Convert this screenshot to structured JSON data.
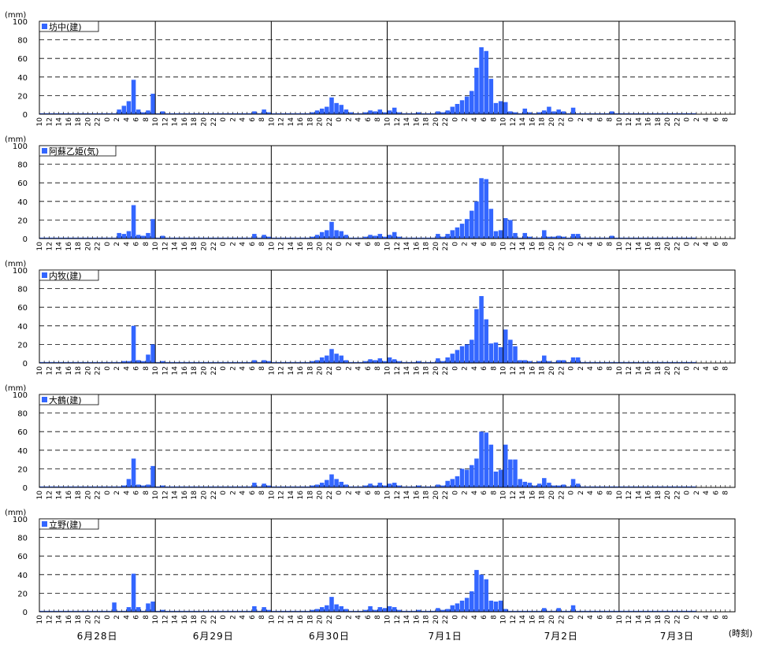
{
  "unit_label": "(mm)",
  "time_axis_label": "(時刻)",
  "y_ticks": [
    "0",
    "20",
    "40",
    "60",
    "80",
    "100"
  ],
  "x_tick_labels": [
    "10",
    "12",
    "14",
    "16",
    "18",
    "20",
    "22",
    "0",
    "2",
    "4",
    "6",
    "8"
  ],
  "day_labels": [
    "6月28日",
    "6月29日",
    "6月30日",
    "7月1日",
    "7月2日",
    "7月3日"
  ],
  "colors": {
    "bar": "#3366FF",
    "grid": "#000000",
    "text": "#000000"
  },
  "chart_data": [
    {
      "type": "bar",
      "name": "坊中(建)",
      "ylim": [
        0,
        100
      ],
      "grid": true,
      "legend": "top-left",
      "start": "6/28 10時",
      "interval_hours": 1,
      "values": [
        1,
        1,
        1,
        1,
        1,
        1,
        1,
        1,
        1,
        1,
        1,
        1,
        1,
        1,
        1,
        1,
        5,
        9,
        14,
        37,
        5,
        2,
        4,
        22,
        1,
        3,
        1,
        1,
        1,
        1,
        1,
        1,
        1,
        1,
        1,
        1,
        1,
        1,
        1,
        1,
        1,
        1,
        1,
        1,
        3,
        1,
        5,
        2,
        1,
        1,
        1,
        1,
        1,
        1,
        1,
        1,
        2,
        4,
        6,
        8,
        18,
        12,
        10,
        5,
        2,
        1,
        1,
        2,
        4,
        3,
        5,
        2,
        4,
        7,
        2,
        1,
        1,
        1,
        2,
        1,
        1,
        1,
        3,
        2,
        4,
        8,
        11,
        15,
        19,
        25,
        50,
        72,
        68,
        38,
        12,
        14,
        13,
        3,
        2,
        1,
        6,
        2,
        1,
        2,
        4,
        8,
        3,
        5,
        3,
        1,
        7,
        1,
        1,
        1,
        1,
        1,
        1,
        1,
        3,
        1,
        1,
        1,
        1,
        1,
        1,
        1,
        1,
        1,
        1,
        1,
        1,
        1,
        1,
        1,
        1,
        1
      ]
    },
    {
      "type": "bar",
      "name": "阿蘇乙姫(気)",
      "ylim": [
        0,
        100
      ],
      "grid": true,
      "legend": "top-left",
      "start": "6/28 10時",
      "interval_hours": 1,
      "values": [
        1,
        1,
        1,
        1,
        1,
        1,
        1,
        1,
        1,
        1,
        1,
        1,
        1,
        1,
        1,
        1,
        6,
        5,
        8,
        36,
        4,
        3,
        6,
        21,
        1,
        3,
        1,
        1,
        1,
        1,
        1,
        1,
        1,
        1,
        1,
        1,
        1,
        1,
        1,
        1,
        1,
        1,
        1,
        1,
        5,
        1,
        4,
        2,
        1,
        1,
        1,
        1,
        1,
        1,
        1,
        1,
        2,
        4,
        7,
        9,
        18,
        9,
        8,
        4,
        1,
        1,
        1,
        2,
        4,
        3,
        5,
        2,
        4,
        7,
        2,
        1,
        1,
        1,
        1,
        1,
        1,
        1,
        5,
        2,
        5,
        9,
        12,
        16,
        21,
        30,
        40,
        65,
        64,
        32,
        8,
        9,
        22,
        20,
        6,
        1,
        6,
        2,
        1,
        1,
        9,
        2,
        2,
        3,
        2,
        1,
        5,
        5,
        1,
        1,
        1,
        1,
        1,
        1,
        3,
        1,
        1,
        1,
        1,
        1,
        1,
        1,
        1,
        1,
        1,
        1,
        1,
        1,
        1,
        1,
        1,
        1
      ]
    },
    {
      "type": "bar",
      "name": "内牧(建)",
      "ylim": [
        0,
        100
      ],
      "grid": true,
      "legend": "top-left",
      "start": "6/28 10時",
      "interval_hours": 1,
      "values": [
        1,
        1,
        1,
        1,
        1,
        1,
        1,
        1,
        1,
        1,
        1,
        1,
        1,
        1,
        1,
        1,
        1,
        2,
        2,
        40,
        3,
        2,
        9,
        20,
        1,
        2,
        1,
        1,
        1,
        1,
        1,
        1,
        1,
        1,
        1,
        1,
        1,
        1,
        1,
        1,
        1,
        1,
        1,
        1,
        3,
        1,
        3,
        2,
        1,
        1,
        1,
        1,
        1,
        1,
        1,
        1,
        2,
        3,
        6,
        8,
        15,
        10,
        8,
        3,
        1,
        1,
        1,
        2,
        4,
        3,
        5,
        2,
        6,
        4,
        2,
        1,
        1,
        1,
        2,
        1,
        1,
        1,
        5,
        2,
        6,
        10,
        14,
        18,
        20,
        25,
        58,
        72,
        47,
        21,
        22,
        17,
        36,
        25,
        18,
        3,
        3,
        2,
        1,
        2,
        8,
        2,
        1,
        3,
        3,
        1,
        6,
        6,
        1,
        1,
        1,
        1,
        1,
        1,
        1,
        1,
        1,
        1,
        1,
        1,
        1,
        1,
        1,
        1,
        1,
        1,
        1,
        1,
        1,
        1,
        1,
        1
      ]
    },
    {
      "type": "bar",
      "name": "大鶴(建)",
      "ylim": [
        0,
        100
      ],
      "grid": true,
      "legend": "top-left",
      "start": "6/28 10時",
      "interval_hours": 1,
      "values": [
        1,
        1,
        1,
        1,
        1,
        1,
        1,
        1,
        1,
        1,
        1,
        1,
        1,
        1,
        1,
        1,
        1,
        2,
        9,
        31,
        3,
        2,
        3,
        23,
        1,
        2,
        1,
        1,
        1,
        1,
        1,
        1,
        1,
        1,
        1,
        1,
        1,
        1,
        1,
        1,
        1,
        1,
        1,
        1,
        5,
        1,
        4,
        2,
        1,
        1,
        1,
        1,
        1,
        1,
        1,
        1,
        2,
        3,
        5,
        8,
        14,
        9,
        6,
        3,
        1,
        1,
        1,
        2,
        4,
        2,
        5,
        2,
        4,
        5,
        2,
        1,
        1,
        1,
        2,
        1,
        1,
        1,
        3,
        2,
        7,
        9,
        12,
        20,
        19,
        24,
        31,
        60,
        59,
        46,
        17,
        19,
        46,
        30,
        30,
        9,
        6,
        5,
        2,
        4,
        10,
        5,
        2,
        2,
        3,
        1,
        9,
        4,
        1,
        1,
        1,
        1,
        1,
        1,
        1,
        1,
        1,
        1,
        1,
        1,
        1,
        1,
        1,
        1,
        1,
        1,
        1,
        1,
        1,
        1,
        1,
        1
      ]
    },
    {
      "type": "bar",
      "name": "立野(建)",
      "ylim": [
        0,
        100
      ],
      "grid": true,
      "legend": "top-left",
      "start": "6/28 10時",
      "interval_hours": 1,
      "values": [
        1,
        1,
        1,
        1,
        1,
        1,
        1,
        1,
        1,
        1,
        1,
        1,
        1,
        1,
        1,
        10,
        1,
        1,
        5,
        41,
        5,
        1,
        9,
        11,
        1,
        2,
        1,
        1,
        1,
        1,
        1,
        1,
        1,
        1,
        1,
        1,
        1,
        1,
        1,
        1,
        1,
        1,
        1,
        1,
        6,
        1,
        5,
        2,
        1,
        1,
        1,
        1,
        1,
        1,
        1,
        1,
        2,
        3,
        5,
        7,
        16,
        8,
        6,
        3,
        1,
        1,
        1,
        2,
        6,
        2,
        5,
        4,
        6,
        5,
        2,
        1,
        1,
        1,
        2,
        1,
        1,
        1,
        4,
        2,
        3,
        7,
        9,
        12,
        15,
        22,
        45,
        40,
        35,
        12,
        11,
        12,
        3,
        1,
        1,
        1,
        1,
        1,
        1,
        1,
        4,
        1,
        1,
        4,
        1,
        1,
        7,
        1,
        1,
        1,
        1,
        1,
        1,
        1,
        1,
        1,
        1,
        1,
        1,
        1,
        1,
        1,
        1,
        1,
        1,
        1,
        1,
        1,
        1,
        1,
        1,
        1
      ]
    }
  ]
}
